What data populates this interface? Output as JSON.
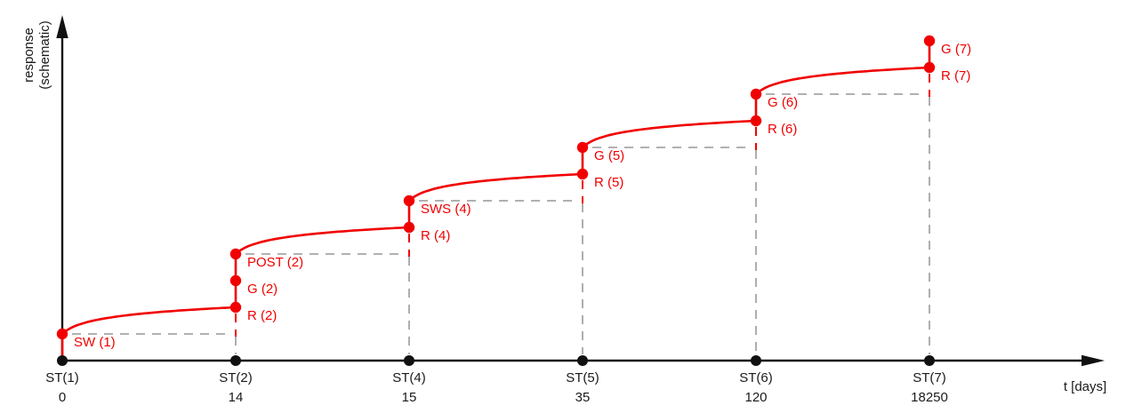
{
  "figure": {
    "background": "#ffffff"
  },
  "colors": {
    "curve_red": "#f10000",
    "dashed_gray": "#a6a6a6",
    "axis_black": "#111111"
  },
  "chart_data": {
    "type": "line",
    "title": "",
    "xlabel": "t [days]",
    "ylabel": "response (schematic)",
    "ylabel_lines": [
      "response",
      "(schematic)"
    ],
    "grid": false,
    "legend": false,
    "x_tick_labels": [
      "ST(1)",
      "ST(2)",
      "ST(4)",
      "ST(5)",
      "ST(6)",
      "ST(7)"
    ],
    "x_tick_values_days": [
      0,
      14,
      15,
      35,
      120,
      18250
    ],
    "stations": [
      {
        "tick": "ST(1)",
        "days": "0",
        "points": [
          {
            "label": "SW (1)",
            "level": 1
          }
        ]
      },
      {
        "tick": "ST(2)",
        "days": "14",
        "points": [
          {
            "label": "R (2)",
            "level": 2
          },
          {
            "label": "G (2)",
            "level": 3
          },
          {
            "label": "POST (2)",
            "level": 4
          }
        ]
      },
      {
        "tick": "ST(4)",
        "days": "15",
        "points": [
          {
            "label": "R (4)",
            "level": 5
          },
          {
            "label": "SWS (4)",
            "level": 6
          }
        ]
      },
      {
        "tick": "ST(5)",
        "days": "35",
        "points": [
          {
            "label": "R (5)",
            "level": 7
          },
          {
            "label": "G (5)",
            "level": 8
          }
        ]
      },
      {
        "tick": "ST(6)",
        "days": "120",
        "points": [
          {
            "label": "R (6)",
            "level": 9
          },
          {
            "label": "G (6)",
            "level": 10
          }
        ]
      },
      {
        "tick": "ST(7)",
        "days": "18250",
        "points": [
          {
            "label": "R (7)",
            "level": 11
          },
          {
            "label": "G (7)",
            "level": 12
          }
        ]
      }
    ]
  }
}
